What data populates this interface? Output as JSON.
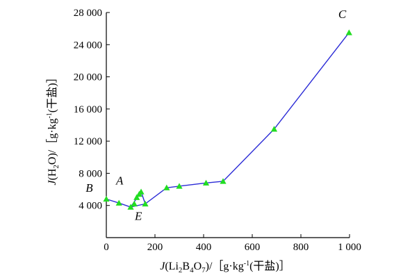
{
  "chart_data": {
    "type": "line",
    "xlabel_parts": {
      "prefix": "J",
      "open": "(Li",
      "sub1": "2",
      "mid1": "B",
      "sub2": "4",
      "mid2": "O",
      "sub3": "7",
      "close": ")/［g·kg",
      "sup": "-1",
      "unit": "(干盐)］"
    },
    "ylabel_parts": {
      "prefix": "J",
      "open": "(H",
      "sub1": "2",
      "close": "O)/［g·kg",
      "sup": "-1",
      "unit": "(干盐)］"
    },
    "xlim": [
      0,
      1000
    ],
    "ylim": [
      0,
      28000
    ],
    "xticks": [
      0,
      200,
      400,
      600,
      800,
      1000
    ],
    "xtick_labels": [
      "0",
      "200",
      "400",
      "600",
      "800",
      "1 000"
    ],
    "yticks": [
      4000,
      8000,
      12000,
      16000,
      20000,
      24000,
      28000
    ],
    "ytick_labels": [
      "4 000",
      "8 000",
      "12 000",
      "16 000",
      "20 000",
      "24 000",
      "28 000"
    ],
    "series": [
      {
        "marker": "triangle",
        "line_color": "#2b2bd6",
        "marker_color": "#22dd22",
        "points": [
          {
            "x": 0,
            "y": 4800
          },
          {
            "x": 52,
            "y": 4300
          },
          {
            "x": 100,
            "y": 3800
          },
          {
            "x": 115,
            "y": 4200
          },
          {
            "x": 125,
            "y": 5000
          },
          {
            "x": 135,
            "y": 5400
          },
          {
            "x": 143,
            "y": 5700
          },
          {
            "x": 160,
            "y": 4200
          },
          {
            "x": 248,
            "y": 6200
          },
          {
            "x": 300,
            "y": 6400
          },
          {
            "x": 410,
            "y": 6800
          },
          {
            "x": 480,
            "y": 7000
          },
          {
            "x": 690,
            "y": 13500
          },
          {
            "x": 998,
            "y": 25500
          }
        ],
        "line_path": [
          {
            "x": 0,
            "y": 4800
          },
          {
            "x": 52,
            "y": 4300
          },
          {
            "x": 100,
            "y": 3800
          },
          {
            "x": 143,
            "y": 5700
          },
          {
            "x": 160,
            "y": 4200
          },
          {
            "x": 100,
            "y": 3800
          },
          {
            "x": 160,
            "y": 4200
          },
          {
            "x": 248,
            "y": 6200
          },
          {
            "x": 300,
            "y": 6400
          },
          {
            "x": 410,
            "y": 6800
          },
          {
            "x": 480,
            "y": 7000
          },
          {
            "x": 690,
            "y": 13500
          },
          {
            "x": 998,
            "y": 25500
          }
        ]
      }
    ],
    "annotations": [
      {
        "text": "B",
        "x": -70,
        "y": 5700
      },
      {
        "text": "A",
        "x": 55,
        "y": 6600
      },
      {
        "text": "E",
        "x": 132,
        "y": 2200
      },
      {
        "text": "C",
        "x": 970,
        "y": 27300
      }
    ],
    "grid": false,
    "legend": "none"
  }
}
